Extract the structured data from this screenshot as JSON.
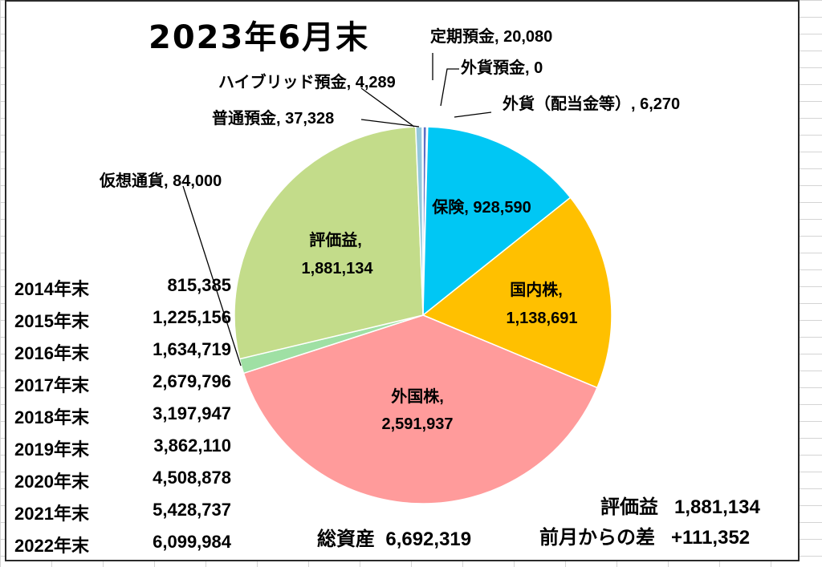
{
  "title": "2023年6月末",
  "chart_data": {
    "type": "pie",
    "start_angle_deg": 0,
    "direction": "clockwise",
    "slices": [
      {
        "label": "定期預金",
        "value": 20080,
        "color": "#5b6fc6",
        "text": "定期預金, 20,080"
      },
      {
        "label": "外貨預金",
        "value": 0,
        "color": "#9e7bd4",
        "text": "外貨預金, 0"
      },
      {
        "label": "外貨（配当金等）",
        "value": 6270,
        "color": "#c9b3ea",
        "text": "外貨（配当金等）, 6,270"
      },
      {
        "label": "保険",
        "value": 928590,
        "color": "#00c7f4",
        "text1": "保険, 928,590"
      },
      {
        "label": "国内株",
        "value": 1138691,
        "color": "#ffc000",
        "text1": "国内株,",
        "text2": "1,138,691"
      },
      {
        "label": "外国株",
        "value": 2591937,
        "color": "#ff9b9b",
        "text1": "外国株,",
        "text2": "2,591,937"
      },
      {
        "label": "仮想通貨",
        "value": 84000,
        "color": "#9fe0a4",
        "text": "仮想通貨, 84,000"
      },
      {
        "label": "評価益",
        "value": 1881134,
        "color": "#c3dc8a",
        "text1": "評価益,",
        "text2": "1,881,134"
      },
      {
        "label": "普通預金",
        "value": 37328,
        "color": "#94c8dc",
        "text": "普通預金, 37,328"
      },
      {
        "label": "ハイブリッド預金",
        "value": 4289,
        "color": "#2e5fa8",
        "text": "ハイブリッド預金, 4,289"
      }
    ]
  },
  "history": [
    {
      "year": "2014年末",
      "value": "815,385"
    },
    {
      "year": "2015年末",
      "value": "1,225,156"
    },
    {
      "year": "2016年末",
      "value": "1,634,719"
    },
    {
      "year": "2017年末",
      "value": "2,679,796"
    },
    {
      "year": "2018年末",
      "value": "3,197,947"
    },
    {
      "year": "2019年末",
      "value": "3,862,110"
    },
    {
      "year": "2020年末",
      "value": "4,508,878"
    },
    {
      "year": "2021年末",
      "value": "5,428,737"
    },
    {
      "year": "2022年末",
      "value": "6,099,984"
    }
  ],
  "summary": {
    "total_label": "総資産",
    "total_value": "6,692,319",
    "gain_label": "評価益",
    "gain_value": "1,881,134",
    "diff_label": "前月からの差",
    "diff_value": "+111,352"
  }
}
